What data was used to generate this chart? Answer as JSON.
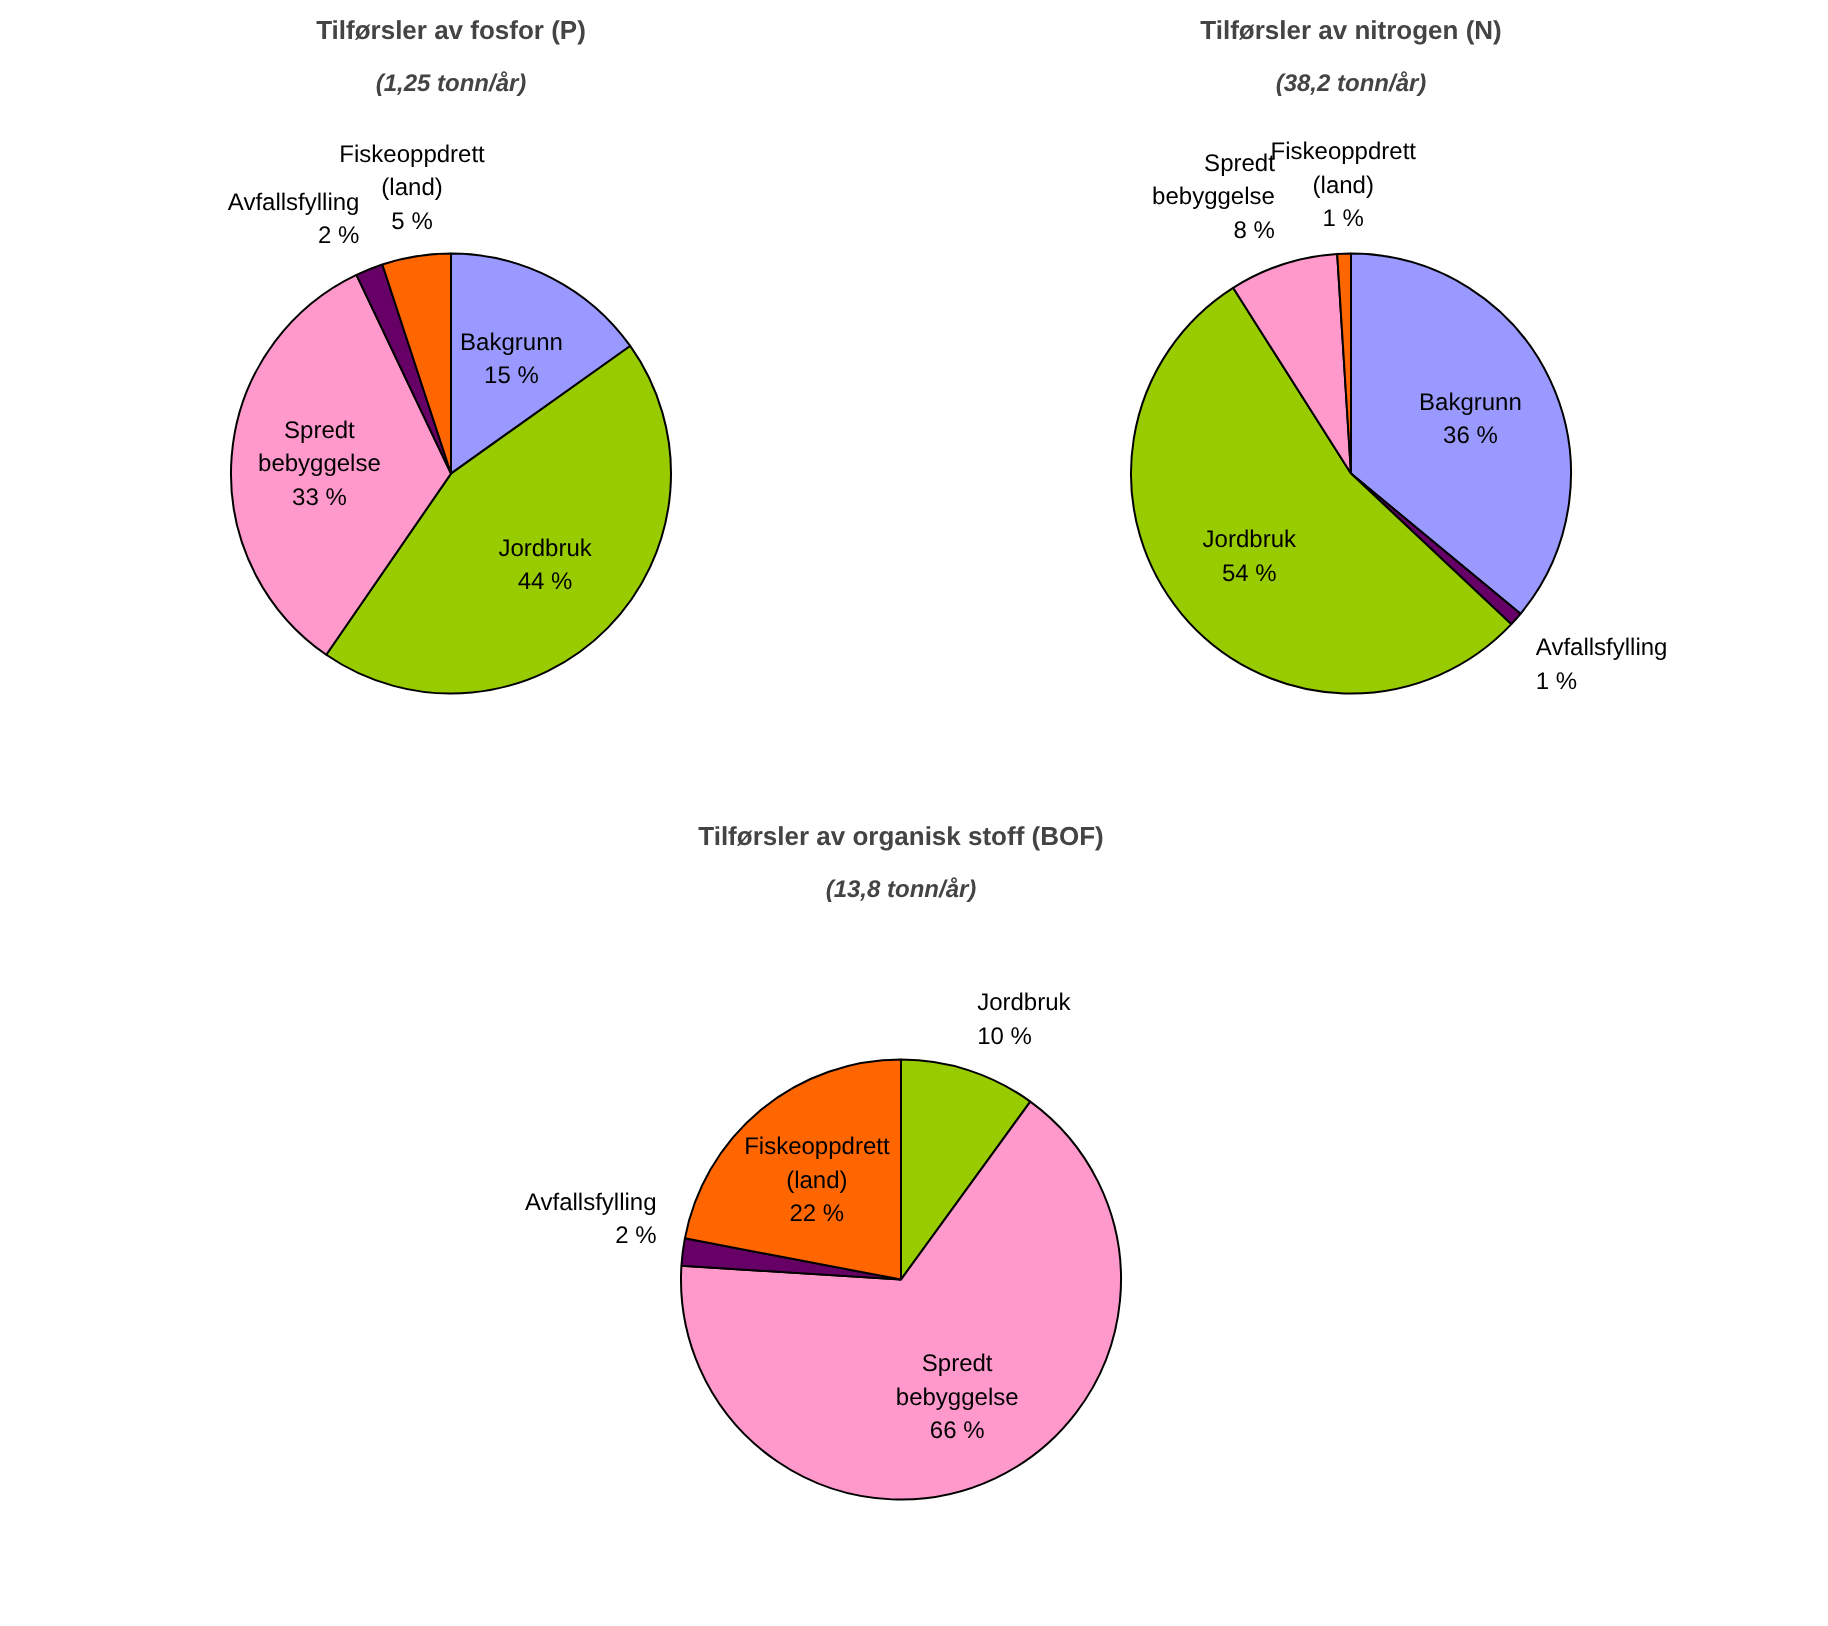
{
  "chart_data": [
    {
      "type": "pie",
      "title": "Tilførsler av fosfor (P)",
      "subtitle": "(1,25 tonn/år)",
      "categories": [
        "Bakgrunn",
        "Jordbruk",
        "Spredt bebyggelse",
        "Avfallsfylling",
        "Fiskeoppdrett (land)"
      ],
      "values": [
        15,
        44,
        33,
        2,
        5
      ],
      "value_labels": [
        "15 %",
        "44 %",
        "33 %",
        "2 %",
        "5 %"
      ],
      "colors": [
        "#9999ff",
        "#99cc00",
        "#ff99cc",
        "#660066",
        "#ff6600"
      ],
      "legend": false
    },
    {
      "type": "pie",
      "title": "Tilførsler av nitrogen (N)",
      "subtitle": "(38,2 tonn/år)",
      "categories": [
        "Bakgrunn",
        "Avfallsfylling",
        "Jordbruk",
        "Spredt bebyggelse",
        "Fiskeoppdrett (land)"
      ],
      "values": [
        36,
        1,
        54,
        8,
        1
      ],
      "value_labels": [
        "36 %",
        "1 %",
        "54 %",
        "8 %",
        "1 %"
      ],
      "colors": [
        "#9999ff",
        "#660066",
        "#99cc00",
        "#ff99cc",
        "#ff6600"
      ],
      "legend": false
    },
    {
      "type": "pie",
      "title": "Tilførsler av organisk stoff (BOF)",
      "subtitle": "(13,8 tonn/år)",
      "categories": [
        "Jordbruk",
        "Spredt bebyggelse",
        "Avfallsfylling",
        "Fiskeoppdrett (land)"
      ],
      "values": [
        10,
        66,
        2,
        22
      ],
      "value_labels": [
        "10 %",
        "66 %",
        "2 %",
        "22 %"
      ],
      "colors": [
        "#99cc00",
        "#ff99cc",
        "#660066",
        "#ff6600"
      ],
      "legend": false
    }
  ]
}
